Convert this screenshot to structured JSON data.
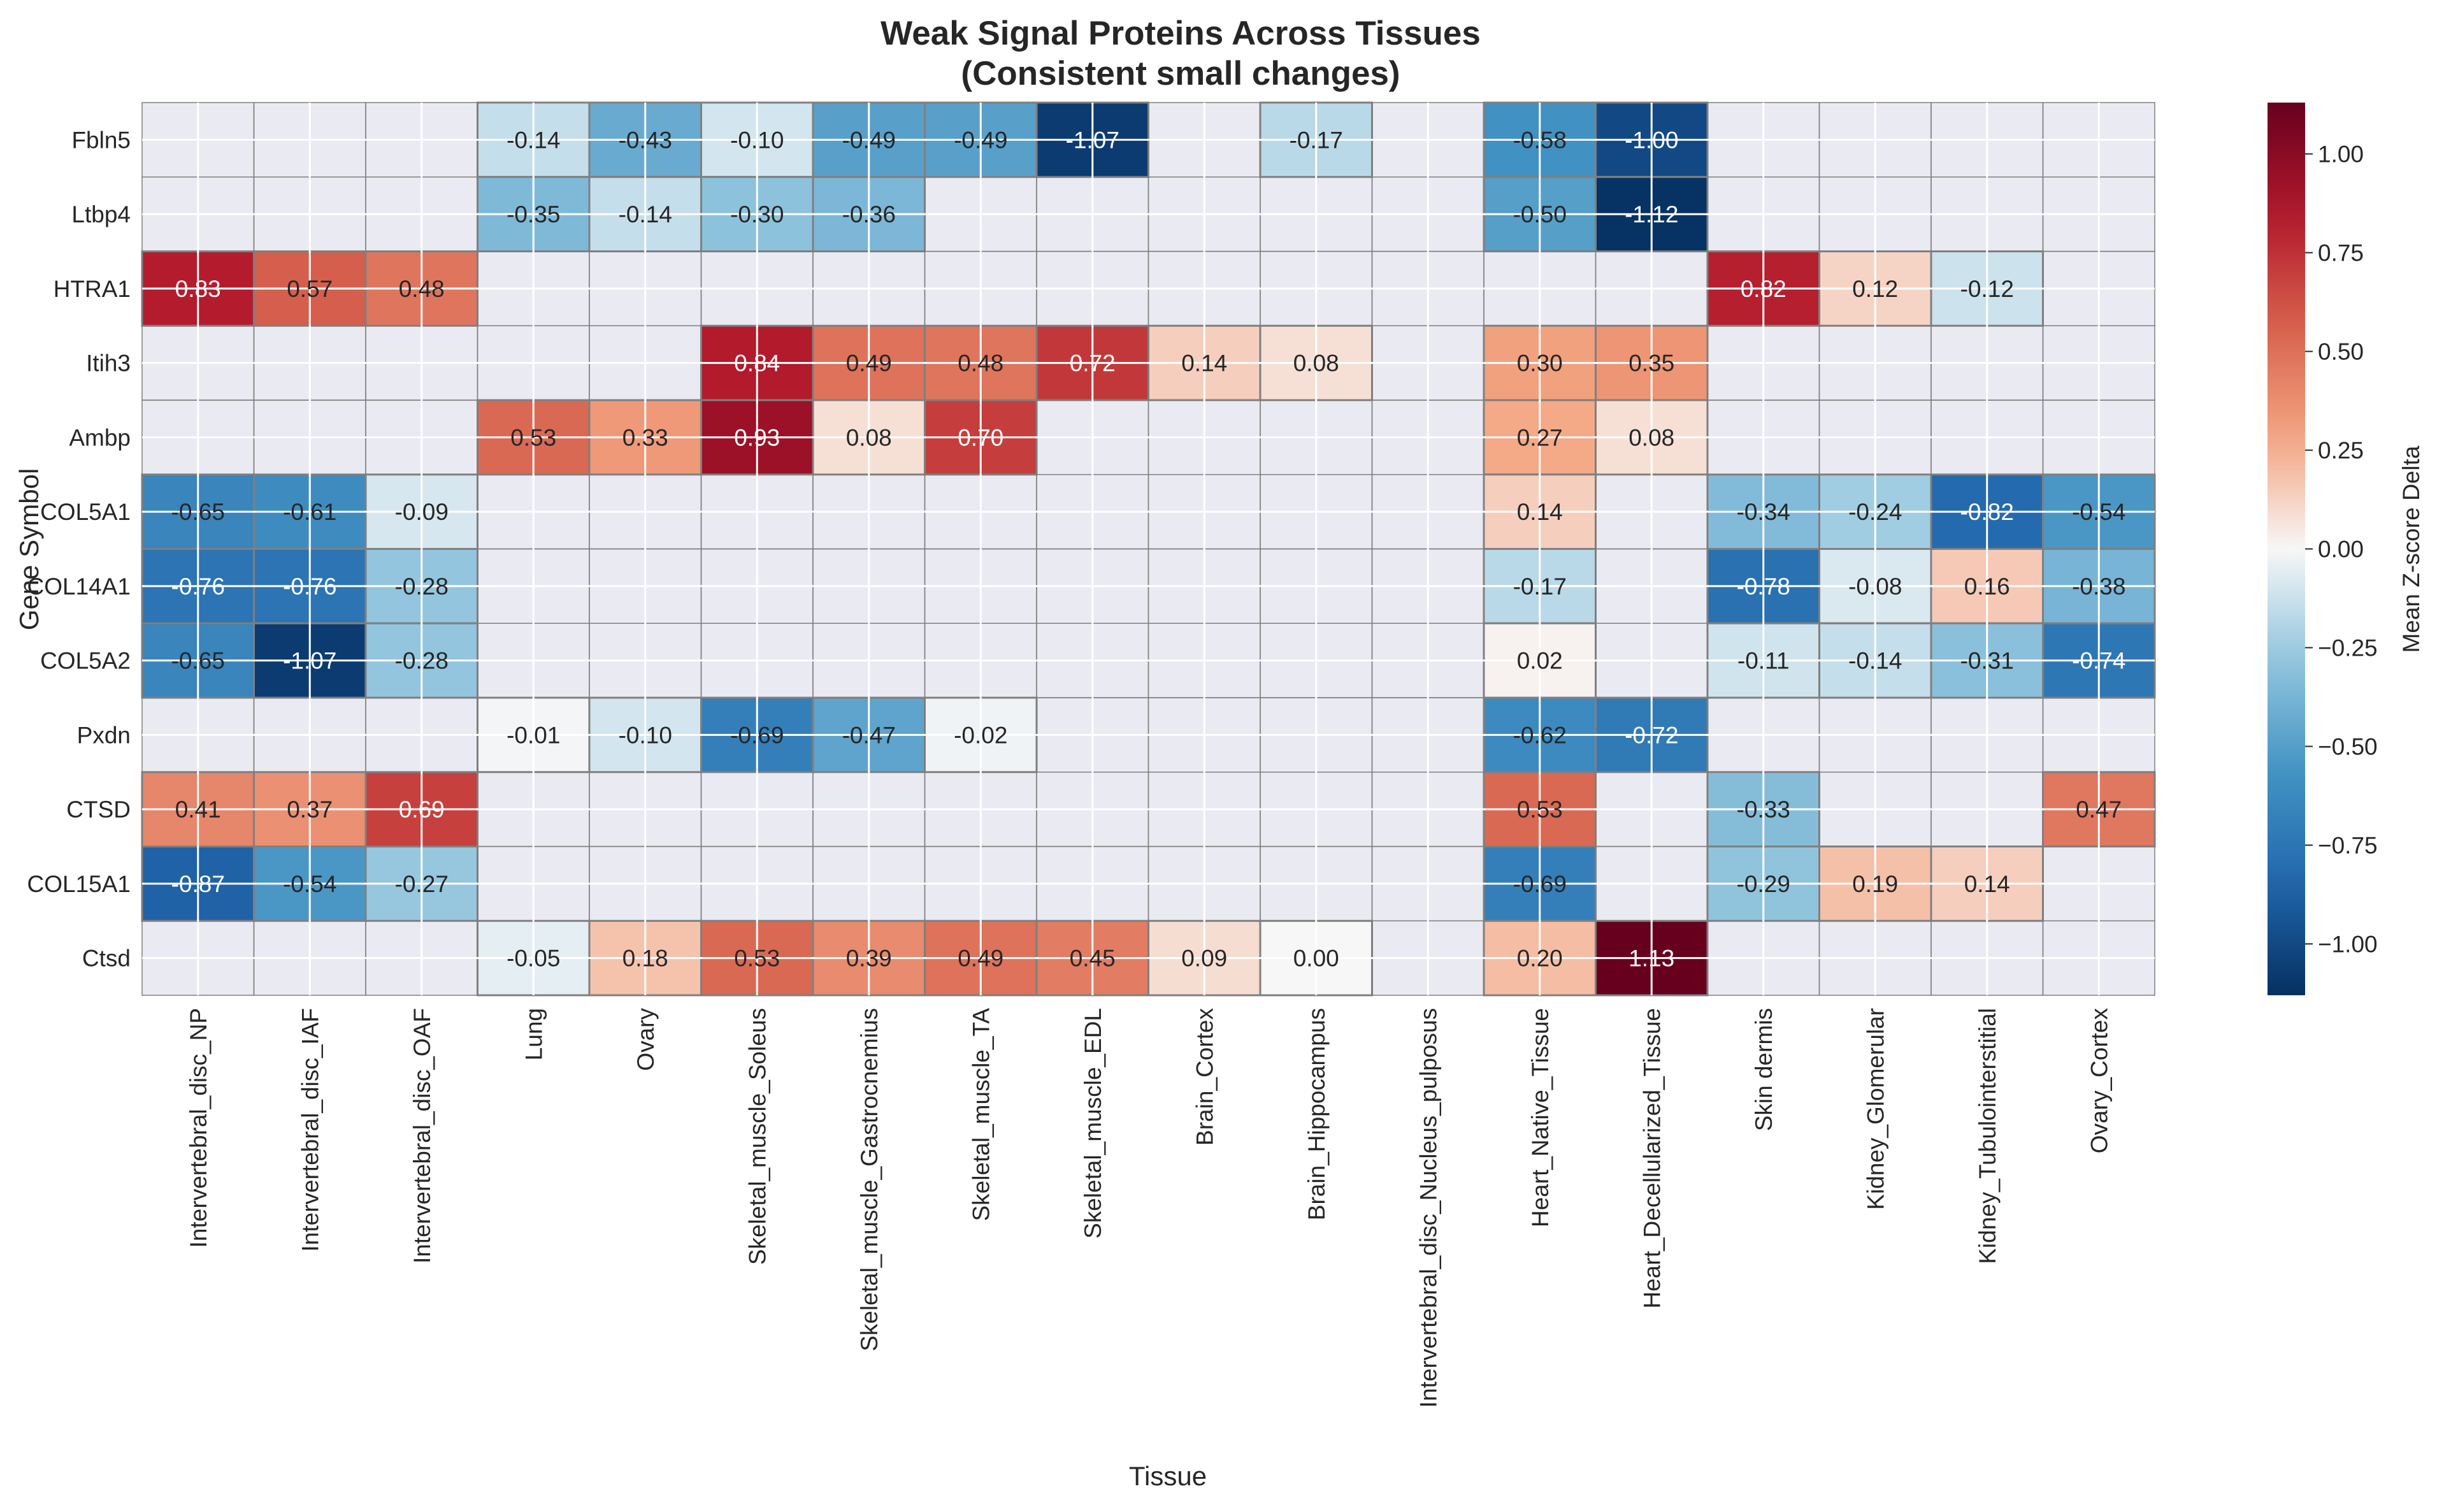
{
  "chart_data": {
    "type": "heatmap",
    "title_lines": [
      "Weak Signal Proteins Across Tissues",
      "(Consistent small changes)"
    ],
    "xlabel": "Tissue",
    "ylabel": "Gene Symbol",
    "colorbar_label": "Mean Z-score Delta",
    "colormap": "RdBu_r",
    "vmin": -1.13,
    "vmax": 1.13,
    "colorbar_ticks": [
      1.0,
      0.75,
      0.5,
      0.25,
      0.0,
      -0.25,
      -0.5,
      -0.75,
      -1.0
    ],
    "colorbar_tick_labels": [
      "1.00",
      "0.75",
      "0.50",
      "0.25",
      "0.00",
      "−0.25",
      "−0.50",
      "−0.75",
      "−1.00"
    ],
    "missing_color": "#eaeaf2",
    "grid": true,
    "columns": [
      "Intervertebral_disc_NP",
      "Intervertebral_disc_IAF",
      "Intervertebral_disc_OAF",
      "Lung",
      "Ovary",
      "Skeletal_muscle_Soleus",
      "Skeletal_muscle_Gastrocnemius",
      "Skeletal_muscle_TA",
      "Skeletal_muscle_EDL",
      "Brain_Cortex",
      "Brain_Hippocampus",
      "Intervertebral_disc_Nucleus_pulposus",
      "Heart_Native_Tissue",
      "Heart_Decellularized_Tissue",
      "Skin dermis",
      "Kidney_Glomerular",
      "Kidney_Tubulointerstitial",
      "Ovary_Cortex"
    ],
    "rows": [
      "Fbln5",
      "Ltbp4",
      "HTRA1",
      "Itih3",
      "Ambp",
      "COL5A1",
      "COL14A1",
      "COL5A2",
      "Pxdn",
      "CTSD",
      "COL15A1",
      "Ctsd"
    ],
    "values": [
      [
        null,
        null,
        null,
        -0.14,
        -0.43,
        -0.1,
        -0.49,
        -0.49,
        -1.07,
        null,
        -0.17,
        null,
        -0.58,
        -1.0,
        null,
        null,
        null,
        null
      ],
      [
        null,
        null,
        null,
        -0.35,
        -0.14,
        -0.3,
        -0.36,
        null,
        null,
        null,
        null,
        null,
        -0.5,
        -1.12,
        null,
        null,
        null,
        null
      ],
      [
        0.83,
        0.57,
        0.48,
        null,
        null,
        null,
        null,
        null,
        null,
        null,
        null,
        null,
        null,
        null,
        0.82,
        0.12,
        -0.12,
        null
      ],
      [
        null,
        null,
        null,
        null,
        null,
        0.84,
        0.49,
        0.48,
        0.72,
        0.14,
        0.08,
        null,
        0.3,
        0.35,
        null,
        null,
        null,
        null
      ],
      [
        null,
        null,
        null,
        0.53,
        0.33,
        0.93,
        0.08,
        0.7,
        null,
        null,
        null,
        null,
        0.27,
        0.08,
        null,
        null,
        null,
        null
      ],
      [
        -0.65,
        -0.61,
        -0.09,
        null,
        null,
        null,
        null,
        null,
        null,
        null,
        null,
        null,
        0.14,
        null,
        -0.34,
        -0.24,
        -0.82,
        -0.54
      ],
      [
        -0.76,
        -0.76,
        -0.28,
        null,
        null,
        null,
        null,
        null,
        null,
        null,
        null,
        null,
        -0.17,
        null,
        -0.78,
        -0.08,
        0.16,
        -0.38
      ],
      [
        -0.65,
        -1.07,
        -0.28,
        null,
        null,
        null,
        null,
        null,
        null,
        null,
        null,
        null,
        0.02,
        null,
        -0.11,
        -0.14,
        -0.31,
        -0.74
      ],
      [
        null,
        null,
        null,
        -0.01,
        -0.1,
        -0.69,
        -0.47,
        -0.02,
        null,
        null,
        null,
        null,
        -0.62,
        -0.72,
        null,
        null,
        null,
        null
      ],
      [
        0.41,
        0.37,
        0.69,
        null,
        null,
        null,
        null,
        null,
        null,
        null,
        null,
        null,
        0.53,
        null,
        -0.33,
        null,
        null,
        0.47
      ],
      [
        -0.87,
        -0.54,
        -0.27,
        null,
        null,
        null,
        null,
        null,
        null,
        null,
        null,
        null,
        -0.69,
        null,
        -0.29,
        0.19,
        0.14,
        null
      ],
      [
        null,
        null,
        null,
        -0.05,
        0.18,
        0.53,
        0.39,
        0.49,
        0.45,
        0.09,
        0.0,
        null,
        0.2,
        1.13,
        null,
        null,
        null,
        null
      ]
    ]
  }
}
